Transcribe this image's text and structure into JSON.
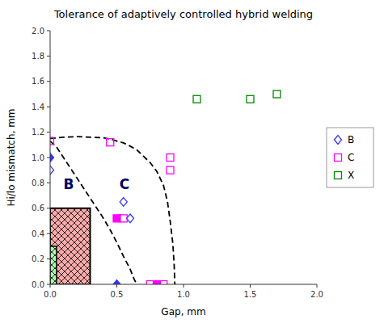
{
  "chart_data": {
    "type": "scatter",
    "title": "Tolerance of adaptively controlled hybrid welding",
    "x_label": "Gap, mm",
    "y_label": "Hi/lo mismatch, mm",
    "xlim": [
      0,
      2
    ],
    "ylim": [
      0,
      2
    ],
    "xticks": [
      {
        "value": 0,
        "label": "0.0"
      },
      0.5,
      {
        "value": 1.0,
        "label": "1.0"
      },
      1.5,
      {
        "value": 2.0,
        "label": "2.0"
      }
    ],
    "yticks": [
      {
        "value": 0,
        "label": "0.0"
      },
      0.2,
      0.4,
      0.6,
      0.8,
      {
        "value": 1.0,
        "label": "1.0"
      },
      1.2,
      1.4,
      1.6,
      1.8,
      {
        "value": 2.0,
        "label": "2.0"
      }
    ],
    "grid": false,
    "legend": "right",
    "rectangles": [
      {
        "x": 0.0,
        "y": 0.0,
        "width": 0.3,
        "height": 0.6,
        "color": "#FFAAAA"
      },
      {
        "x": 0.0,
        "y": 0.0,
        "width": 0.048,
        "height": 0.3,
        "color": "#AAFFAA"
      }
    ],
    "series": [
      {
        "type": "line",
        "line_style": "dashed",
        "color": "#000000",
        "x": [
          0.0,
          0.05,
          0.1,
          0.2,
          0.3,
          0.4,
          0.45,
          0.5,
          0.55,
          0.6,
          0.65,
          0.7,
          0.75,
          0.8,
          0.85,
          0.88,
          0.9,
          0.92,
          0.93,
          0.935
        ],
        "values": [
          1.15,
          1.155,
          1.16,
          1.165,
          1.16,
          1.155,
          1.145,
          1.13,
          1.115,
          1.09,
          1.06,
          1.01,
          0.96,
          0.89,
          0.78,
          0.65,
          0.5,
          0.32,
          0.15,
          0.0
        ]
      },
      {
        "type": "line",
        "line_style": "dashed",
        "color": "#000000",
        "x": [
          0.0,
          0.05,
          0.1,
          0.15,
          0.2,
          0.25,
          0.3,
          0.35,
          0.4,
          0.45,
          0.5,
          0.55,
          0.6,
          0.63,
          0.65
        ],
        "values": [
          1.13,
          1.08,
          1.0,
          0.92,
          0.84,
          0.76,
          0.68,
          0.6,
          0.52,
          0.43,
          0.33,
          0.22,
          0.12,
          0.04,
          0.0
        ]
      },
      {
        "name": "B",
        "type": "scatter",
        "marker": "open-diamond",
        "color": "#3333FF",
        "x": [
          0,
          0.55,
          0.6
        ],
        "values": [
          0.9,
          0.65,
          0.52
        ]
      },
      {
        "name": "B",
        "type": "scatter",
        "marker": "diamond",
        "color": "#3333FF",
        "x": [
          0,
          0.5
        ],
        "values": [
          1.0,
          0.0
        ]
      },
      {
        "name": "C",
        "type": "scatter",
        "marker": "open-square",
        "color": "#FF00FF",
        "x": [
          0,
          0.45,
          0.55,
          0.75,
          0.85,
          0.9,
          0.9
        ],
        "values": [
          1.13,
          1.12,
          0.52,
          0.0,
          0.0,
          0.9,
          1.0
        ]
      },
      {
        "name": "C",
        "type": "scatter",
        "marker": "square",
        "color": "#FF00FF",
        "x": [
          0.5,
          0.8
        ],
        "values": [
          0.52,
          0.0
        ]
      },
      {
        "name": "X",
        "type": "scatter",
        "marker": "open-square",
        "color": "#008800",
        "x": [
          1.1,
          1.5,
          1.7
        ],
        "values": [
          1.46,
          1.46,
          1.5
        ]
      }
    ],
    "annotations": [
      {
        "text": "B",
        "x": 0.1,
        "y": 0.75,
        "color": "#000066"
      },
      {
        "text": "C",
        "x": 0.52,
        "y": 0.75,
        "color": "#000066"
      }
    ]
  }
}
